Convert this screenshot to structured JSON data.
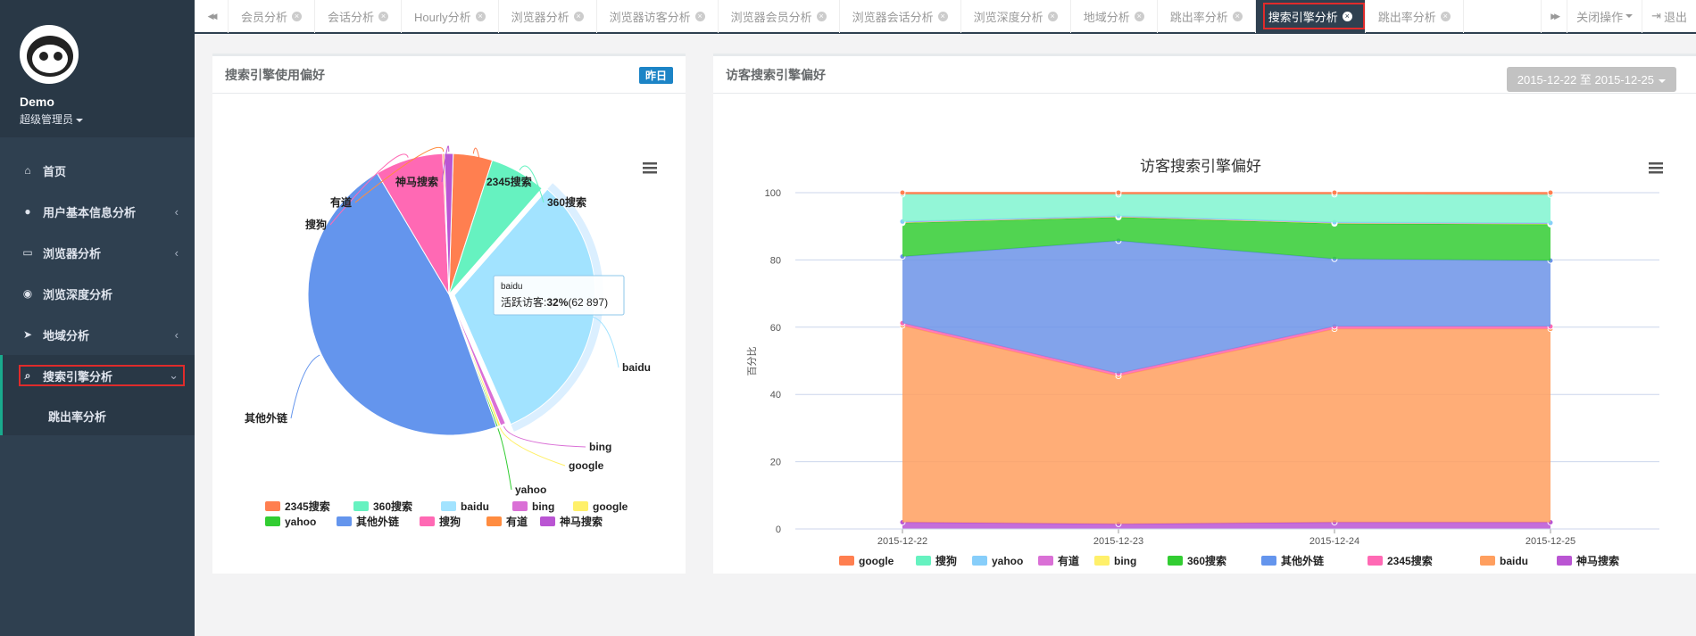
{
  "sidebar": {
    "profile": {
      "name": "Demo",
      "role": "超级管理员"
    },
    "items": [
      {
        "label": "首页",
        "icon": "home-icon",
        "has_arrow": false
      },
      {
        "label": "用户基本信息分析",
        "icon": "user-icon",
        "has_arrow": true
      },
      {
        "label": "浏览器分析",
        "icon": "laptop-icon",
        "has_arrow": true
      },
      {
        "label": "浏览深度分析",
        "icon": "eye-icon",
        "has_arrow": false
      },
      {
        "label": "地域分析",
        "icon": "location-arrow-icon",
        "has_arrow": true
      },
      {
        "label": "搜索引擎分析",
        "icon": "search-icon",
        "has_arrow": true
      },
      {
        "label": "跳出率分析",
        "icon": "",
        "has_arrow": false
      }
    ],
    "arrow_left": "‹",
    "arrow_down": "⌄"
  },
  "tabs": {
    "nav_prev": "◀◀",
    "nav_next": "▶▶",
    "items": [
      "会员分析",
      "会话分析",
      "Hourly分析",
      "浏览器分析",
      "浏览器访客分析",
      "浏览器会员分析",
      "浏览器会话分析",
      "浏览深度分析",
      "地域分析",
      "跳出率分析",
      "搜索引擎分析",
      "跳出率分析"
    ],
    "active_index": 10,
    "close_ops": "关闭操作",
    "logout": "退出"
  },
  "left_panel": {
    "title": "搜索引擎使用偏好",
    "badge": "昨日",
    "menu_icon": "hamburger-icon",
    "tooltip": {
      "title": "baidu",
      "label": "活跃访客:",
      "value_bold": "32%",
      "value_rest": "(62 897)"
    }
  },
  "right_panel": {
    "title": "访客搜索引擎偏好",
    "date_range": "2015-12-22 至 2015-12-25",
    "menu_icon": "hamburger-icon"
  },
  "chart_data": [
    {
      "type": "pie",
      "title": "",
      "slices": [
        {
          "name": "2345搜索",
          "value": 4.5,
          "color": "#ff7f50"
        },
        {
          "name": "360搜索",
          "value": 6.5,
          "color": "#66f2c0"
        },
        {
          "name": "baidu",
          "value": 32,
          "color": "#a2e3ff"
        },
        {
          "name": "bing",
          "value": 0.6,
          "color": "#da70d6"
        },
        {
          "name": "google",
          "value": 0.3,
          "color": "#fff06a"
        },
        {
          "name": "yahoo",
          "value": 0.2,
          "color": "#32cd32"
        },
        {
          "name": "其他外链",
          "value": 47,
          "color": "#6495ed"
        },
        {
          "name": "搜狗",
          "value": 7.8,
          "color": "#ff69b4"
        },
        {
          "name": "有道",
          "value": 0.2,
          "color": "#ff8c40"
        },
        {
          "name": "神马搜索",
          "value": 1.0,
          "color": "#ba55d3"
        }
      ],
      "legend_order": [
        "2345搜索",
        "360搜索",
        "baidu",
        "bing",
        "google",
        "yahoo",
        "其他外链",
        "搜狗",
        "有道",
        "神马搜索"
      ]
    },
    {
      "type": "area",
      "title": "访客搜索引擎偏好",
      "ylabel": "百分比",
      "ylim": [
        0,
        100
      ],
      "yticks": [
        0,
        20,
        40,
        60,
        80,
        100
      ],
      "categories": [
        "2015-12-22",
        "2015-12-23",
        "2015-12-24",
        "2015-12-25"
      ],
      "stacked": true,
      "series": [
        {
          "name": "神马搜索",
          "color": "#ba55d3",
          "values": [
            2,
            1.5,
            2,
            2
          ]
        },
        {
          "name": "baidu",
          "color": "#ff9f5f",
          "values": [
            58.5,
            44,
            57.5,
            57.5
          ]
        },
        {
          "name": "2345搜索",
          "color": "#ff69b4",
          "values": [
            0.7,
            0.7,
            0.7,
            0.7
          ]
        },
        {
          "name": "其他外链",
          "color": "#6c93e8",
          "values": [
            19.8,
            39.5,
            20.1,
            19.6
          ]
        },
        {
          "name": "360搜索",
          "color": "#32cd32",
          "values": [
            10,
            7,
            10.5,
            10.8
          ]
        },
        {
          "name": "bing",
          "color": "#fff06a",
          "values": [
            0.2,
            0.2,
            0.2,
            0.2
          ]
        },
        {
          "name": "有道",
          "color": "#da70d6",
          "values": [
            0.1,
            0.1,
            0.1,
            0.1
          ]
        },
        {
          "name": "yahoo",
          "color": "#87cefa",
          "values": [
            0.1,
            0.1,
            0.1,
            0.1
          ]
        },
        {
          "name": "搜狗",
          "color": "#80f5d0",
          "values": [
            8.1,
            6.4,
            8.3,
            8.4
          ]
        },
        {
          "name": "google",
          "color": "#ff7f50",
          "values": [
            0.5,
            0.5,
            0.5,
            0.6
          ]
        }
      ],
      "legend_order": [
        "google",
        "搜狗",
        "yahoo",
        "有道",
        "bing",
        "360搜索",
        "其他外链",
        "2345搜索",
        "baidu",
        "神马搜索"
      ],
      "legend_colors": {
        "google": "#ff7f50",
        "搜狗": "#66f2c0",
        "yahoo": "#87cefa",
        "有道": "#da70d6",
        "bing": "#fff06a",
        "360搜索": "#32cd32",
        "其他外链": "#6495ed",
        "2345搜索": "#ff69b4",
        "baidu": "#ff9f5f",
        "神马搜索": "#ba55d3"
      }
    }
  ]
}
